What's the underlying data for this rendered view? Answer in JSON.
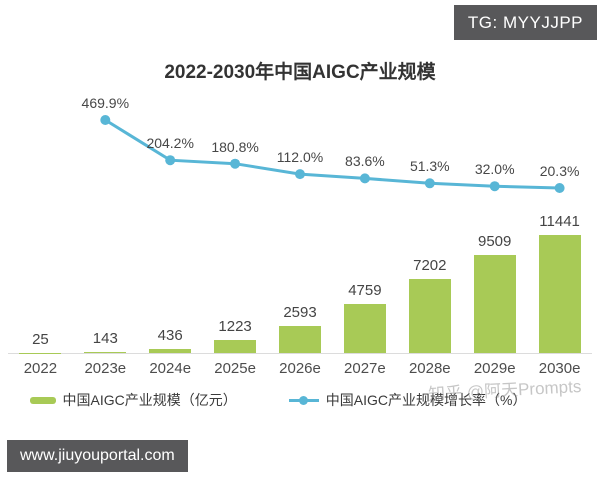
{
  "overlay": {
    "tg_badge": "TG: MYYJJPP",
    "url_badge": "www.jiuyouportal.com",
    "watermark": "知乎 @阿天Prompts"
  },
  "chart_data": {
    "type": "bar",
    "subtype": "bar+line combo",
    "title": "2022-2030年中国AIGC产业规模",
    "categories": [
      "2022",
      "2023e",
      "2024e",
      "2025e",
      "2026e",
      "2027e",
      "2028e",
      "2029e",
      "2030e"
    ],
    "series": [
      {
        "name": "中国AIGC产业规模（亿元）",
        "type": "bar",
        "color": "#a8ca56",
        "unit": "亿元",
        "values": [
          25,
          143,
          436,
          1223,
          2593,
          4759,
          7202,
          9509,
          11441
        ]
      },
      {
        "name": "中国AIGC产业规模增长率（%）",
        "type": "line",
        "color": "#58b6d6",
        "unit": "%",
        "values": [
          null,
          469.9,
          204.2,
          180.8,
          112.0,
          83.6,
          51.3,
          32.0,
          20.3
        ],
        "labels": [
          "",
          "469.9%",
          "204.2%",
          "180.8%",
          "112.0%",
          "83.6%",
          "51.3%",
          "32.0%",
          "20.3%"
        ]
      }
    ],
    "legend_position": "bottom",
    "grid": false,
    "value_labels": true,
    "ylim_bars": [
      0,
      11441
    ],
    "ylim_line_pct": [
      20.3,
      469.9
    ]
  }
}
